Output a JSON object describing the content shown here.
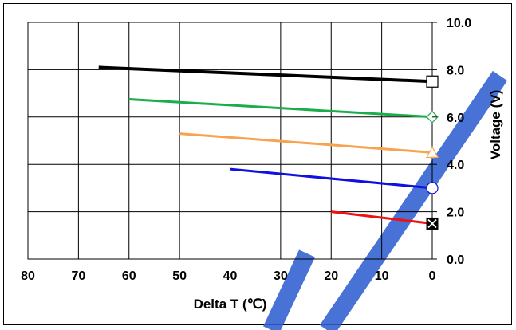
{
  "chart_data": {
    "type": "line",
    "xlabel": "Delta T (℃)",
    "ylabel": "Voltage (V)",
    "xlim": [
      80,
      0
    ],
    "ylim": [
      0,
      10
    ],
    "x_ticks": [
      "80",
      "70",
      "60",
      "50",
      "40",
      "30",
      "20",
      "10",
      "0"
    ],
    "y_ticks": [
      "0.0",
      "2.0",
      "4.0",
      "6.0",
      "8.0",
      "10.0"
    ],
    "grid": true,
    "series": [
      {
        "color": "#000000",
        "marker": "square",
        "x": [
          66,
          0
        ],
        "y": [
          8.1,
          7.5
        ]
      },
      {
        "color": "#1aad4b",
        "marker": "diamond",
        "x": [
          60,
          0
        ],
        "y": [
          6.75,
          6.0
        ]
      },
      {
        "color": "#f7a34f",
        "marker": "triangle",
        "x": [
          50,
          0
        ],
        "y": [
          5.3,
          4.5
        ]
      },
      {
        "color": "#1010e0",
        "marker": "circle",
        "x": [
          40,
          0
        ],
        "y": [
          3.8,
          3.0
        ]
      },
      {
        "color": "#ee1111",
        "marker": "x-box",
        "x": [
          20,
          0
        ],
        "y": [
          2.0,
          1.5
        ]
      }
    ]
  }
}
